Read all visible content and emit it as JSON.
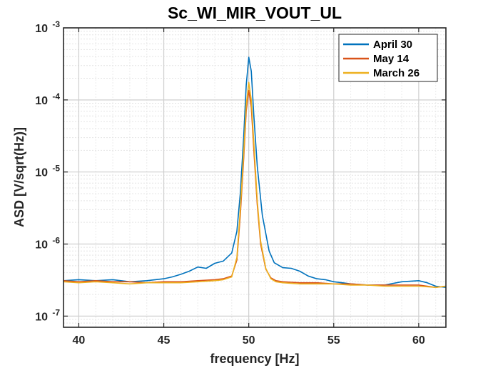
{
  "chart_data": {
    "type": "line",
    "title": "Sc_WI_MIR_VOUT_UL",
    "xlabel": "frequency [Hz]",
    "ylabel": "ASD [V/sqrt(Hz)]",
    "xlim": [
      39.1,
      61.6
    ],
    "ylim": [
      7e-08,
      0.001
    ],
    "yscale": "log",
    "grid": true,
    "minor_grid": true,
    "legend_position": "top-right",
    "x_ticks": [
      40,
      45,
      50,
      55,
      60
    ],
    "x_tick_labels": [
      "40",
      "45",
      "50",
      "55",
      "60"
    ],
    "y_ticks": [
      1e-07,
      1e-06,
      1e-05,
      0.0001,
      0.001
    ],
    "y_tick_labels": [
      {
        "base": "10",
        "exp": "-7"
      },
      {
        "base": "10",
        "exp": "-6"
      },
      {
        "base": "10",
        "exp": "-5"
      },
      {
        "base": "10",
        "exp": "-4"
      },
      {
        "base": "10",
        "exp": "-3"
      }
    ],
    "series": [
      {
        "name": "April 30",
        "color": "#0072BD",
        "x": [
          39.1,
          40,
          41,
          42,
          43,
          44,
          45,
          45.5,
          46,
          46.5,
          47,
          47.5,
          48,
          48.5,
          49,
          49.3,
          49.5,
          49.7,
          49.85,
          50,
          50.15,
          50.3,
          50.5,
          50.8,
          51.2,
          51.5,
          52,
          52.5,
          53,
          53.5,
          54,
          54.5,
          55,
          55.5,
          56,
          57,
          58,
          59,
          60,
          60.5,
          61,
          61.6
        ],
        "y": [
          3.1e-07,
          3.2e-07,
          3.1e-07,
          3.2e-07,
          3e-07,
          3.1e-07,
          3.3e-07,
          3.5e-07,
          3.8e-07,
          4.2e-07,
          4.8e-07,
          4.6e-07,
          5.4e-07,
          5.8e-07,
          7.5e-07,
          1.5e-06,
          5e-06,
          3e-05,
          0.00016,
          0.00039,
          0.00025,
          6e-05,
          1.2e-05,
          2.5e-06,
          8e-07,
          5.5e-07,
          4.7e-07,
          4.6e-07,
          4.2e-07,
          3.6e-07,
          3.3e-07,
          3.2e-07,
          3e-07,
          2.9e-07,
          2.8e-07,
          2.7e-07,
          2.7e-07,
          3e-07,
          3.1e-07,
          2.9e-07,
          2.6e-07,
          2.5e-07
        ]
      },
      {
        "name": "May 14",
        "color": "#D95319",
        "x": [
          39.1,
          40,
          41,
          42,
          43,
          44,
          45,
          46,
          47,
          48,
          48.5,
          49,
          49.3,
          49.5,
          49.7,
          49.85,
          50,
          50.15,
          50.3,
          50.5,
          50.7,
          51,
          51.3,
          51.6,
          52,
          53,
          54,
          55,
          56,
          57,
          58,
          59,
          60,
          61,
          61.6
        ],
        "y": [
          3.1e-07,
          3e-07,
          3.1e-07,
          3e-07,
          3e-07,
          2.9e-07,
          3e-07,
          3e-07,
          3.1e-07,
          3.2e-07,
          3.3e-07,
          3.6e-07,
          6e-07,
          2.5e-06,
          1.5e-05,
          7e-05,
          0.000135,
          8e-05,
          2e-05,
          3.5e-06,
          1e-06,
          4.5e-07,
          3.4e-07,
          3.1e-07,
          3e-07,
          2.9e-07,
          2.9e-07,
          2.8e-07,
          2.8e-07,
          2.7e-07,
          2.7e-07,
          2.7e-07,
          2.7e-07,
          2.5e-07,
          2.6e-07
        ]
      },
      {
        "name": "March 26",
        "color": "#EDB120",
        "x": [
          39.1,
          40,
          41,
          42,
          43,
          44,
          45,
          46,
          47,
          48,
          48.5,
          49,
          49.3,
          49.5,
          49.7,
          49.85,
          50,
          50.15,
          50.3,
          50.5,
          50.7,
          51,
          51.3,
          51.6,
          52,
          53,
          54,
          55,
          56,
          57,
          58,
          59,
          60,
          61,
          61.6
        ],
        "y": [
          3e-07,
          2.9e-07,
          3e-07,
          2.9e-07,
          2.8e-07,
          2.9e-07,
          2.9e-07,
          2.9e-07,
          3e-07,
          3.1e-07,
          3.2e-07,
          3.5e-07,
          6.5e-07,
          3e-06,
          1.8e-05,
          8.5e-05,
          0.000175,
          0.0001,
          2.5e-05,
          4e-06,
          1.1e-06,
          4.6e-07,
          3.3e-07,
          3e-07,
          2.9e-07,
          2.8e-07,
          2.8e-07,
          2.8e-07,
          2.7e-07,
          2.7e-07,
          2.6e-07,
          2.6e-07,
          2.6e-07,
          2.5e-07,
          2.6e-07
        ]
      }
    ]
  }
}
